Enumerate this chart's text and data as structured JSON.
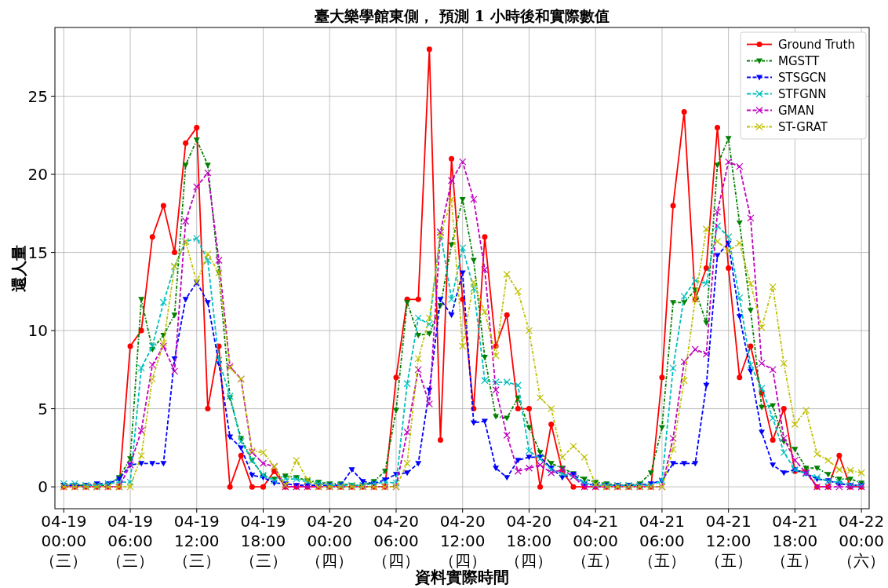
{
  "chart_data": {
    "type": "line",
    "title": "臺大樂學館東側， 預測 1 小時後和實際數值",
    "xlabel": "資料實際時間",
    "ylabel": "還人量",
    "categories": [
      "04-19\n00:00\n（三）",
      null,
      null,
      null,
      null,
      null,
      "04-19\n06:00\n（三）",
      null,
      null,
      null,
      null,
      null,
      "04-19\n12:00\n（三）",
      null,
      null,
      null,
      null,
      null,
      "04-19\n18:00\n（三）",
      null,
      null,
      null,
      null,
      null,
      "04-20\n00:00\n（四）",
      null,
      null,
      null,
      null,
      null,
      "04-20\n06:00\n（四）",
      null,
      null,
      null,
      null,
      null,
      "04-20\n12:00\n（四）",
      null,
      null,
      null,
      null,
      null,
      "04-20\n18:00\n（四）",
      null,
      null,
      null,
      null,
      null,
      "04-21\n00:00\n（五）",
      null,
      null,
      null,
      null,
      null,
      "04-21\n06:00\n（五）",
      null,
      null,
      null,
      null,
      null,
      "04-21\n12:00\n（五）",
      null,
      null,
      null,
      null,
      null,
      "04-21\n18:00\n（五）",
      null,
      null,
      null,
      null,
      null,
      "04-22\n00:00\n（六）"
    ],
    "ylim": [
      -1.4,
      29.4
    ],
    "yticks": [
      0,
      5,
      10,
      15,
      20,
      25
    ],
    "grid": true,
    "legend": "top right",
    "series": [
      {
        "name": "Ground Truth",
        "color": "#ff0000",
        "marker": "circle",
        "line_style": "solid",
        "values": [
          0,
          0,
          0,
          0,
          0,
          0,
          9,
          10,
          16,
          18,
          15,
          22,
          23,
          5,
          9,
          0,
          2,
          0,
          0,
          1,
          0,
          0,
          0,
          0,
          0,
          0,
          0,
          0,
          0,
          0,
          7,
          12,
          12,
          28,
          3,
          21,
          12,
          5,
          16,
          9,
          11,
          5,
          5,
          0,
          4,
          1,
          0,
          0,
          0,
          0,
          0,
          0,
          0,
          0,
          7,
          18,
          24,
          12,
          14,
          23,
          14,
          7,
          9,
          6,
          3,
          5,
          1,
          1,
          0,
          0,
          2,
          0,
          0
        ]
      },
      {
        "name": "MGSTT",
        "color": "#008000",
        "marker": "triangle",
        "line_style": "dotted",
        "values": [
          0.1,
          0.1,
          0.1,
          0.1,
          0.1,
          0.6,
          1.8,
          12,
          8.8,
          9.7,
          11,
          20.6,
          22.2,
          20.6,
          13.7,
          5.7,
          3.1,
          1.7,
          0.7,
          0.5,
          0.7,
          0.6,
          0.4,
          0.3,
          0.2,
          0.2,
          0.1,
          0.1,
          0.35,
          1.0,
          4.9,
          11.8,
          9.7,
          9.8,
          11.6,
          15.5,
          18.4,
          14.5,
          8.3,
          4.5,
          4.4,
          5.7,
          3.8,
          2.2,
          1.5,
          1.2,
          0.85,
          0.5,
          0.3,
          0.2,
          0.1,
          0.1,
          0.2,
          0.9,
          3.8,
          11.8,
          11.8,
          12.6,
          10.5,
          20.6,
          22.3,
          16.9,
          11.3,
          5.1,
          5.2,
          2.9,
          2.4,
          1.2,
          1.2,
          0.8,
          0.5,
          0.5,
          0.25
        ]
      },
      {
        "name": "STSGCN",
        "color": "#0000ff",
        "marker": "triangle",
        "line_style": "dashed",
        "values": [
          0.1,
          0.1,
          0.1,
          0.2,
          0.2,
          0.5,
          1.4,
          1.5,
          1.5,
          1.5,
          8.2,
          12,
          13.1,
          11.8,
          7.9,
          3.2,
          2.5,
          0.75,
          0.6,
          0.25,
          0.2,
          0.1,
          0.1,
          0.1,
          0.1,
          0.1,
          1.1,
          0.35,
          0.2,
          0.45,
          0.8,
          0.9,
          1.5,
          6.2,
          12,
          11,
          13.7,
          4.1,
          4.2,
          1.2,
          0.6,
          1.7,
          1.9,
          1.9,
          1.2,
          0.6,
          0.8,
          0.2,
          0.1,
          0.1,
          0.1,
          0.1,
          0.1,
          0.2,
          0.4,
          1.5,
          1.5,
          1.5,
          6.5,
          14.8,
          15.6,
          10.9,
          7.4,
          3.5,
          1.4,
          0.9,
          1.1,
          0.85,
          0.5,
          0.4,
          0.2,
          0.1,
          0.1
        ]
      },
      {
        "name": "STFGNN",
        "color": "#00bfbf",
        "marker": "cross",
        "line_style": "dashed",
        "values": [
          0.2,
          0.2,
          0.1,
          0.1,
          0.2,
          0.3,
          0.3,
          7.6,
          9,
          11.8,
          14.1,
          15.7,
          15.9,
          14.5,
          8.1,
          5.8,
          2.9,
          1.7,
          0.75,
          0.4,
          0.5,
          0.5,
          0.3,
          0.2,
          0.1,
          0.1,
          0.1,
          0.1,
          0.2,
          0.3,
          0.25,
          6.6,
          10.8,
          10.4,
          16.3,
          12,
          15.3,
          12.7,
          6.8,
          6.7,
          6.7,
          6.5,
          2.3,
          1.8,
          1.1,
          0.85,
          0.65,
          0.25,
          0.1,
          0.1,
          0.1,
          0.1,
          0.1,
          0.1,
          0.4,
          7.6,
          12.2,
          13.2,
          13,
          16.7,
          16,
          12.1,
          7.8,
          6.3,
          4.4,
          2.2,
          1.1,
          0.85,
          0.6,
          0.35,
          0.3,
          0.1,
          0.1
        ]
      },
      {
        "name": "GMAN",
        "color": "#bf00bf",
        "marker": "cross",
        "line_style": "dashed",
        "values": [
          0,
          0,
          0,
          0,
          0,
          0,
          1.4,
          3.6,
          7.8,
          9,
          7.4,
          17,
          19.2,
          20.1,
          14.5,
          7.7,
          6.9,
          2.2,
          1.5,
          1.3,
          0,
          0,
          0,
          0,
          0,
          0,
          0,
          0,
          0,
          0,
          0,
          3.5,
          7.5,
          5.3,
          16.3,
          19.6,
          20.8,
          18.4,
          13.9,
          6.2,
          3.3,
          1.0,
          1.2,
          1.4,
          0.9,
          1.1,
          0.65,
          0,
          0,
          0,
          0,
          0,
          0,
          0,
          0,
          3.1,
          8,
          8.8,
          8.5,
          17.6,
          20.8,
          20.5,
          17.2,
          7.9,
          7.5,
          3.1,
          1.7,
          0.9,
          0,
          0,
          0,
          0,
          0
        ]
      },
      {
        "name": "ST-GRAT",
        "color": "#bfbf00",
        "marker": "cross",
        "line_style": "dotted",
        "values": [
          0,
          0,
          0,
          0,
          0,
          0,
          0,
          2,
          6.9,
          9.2,
          14.1,
          15.7,
          13.1,
          14.9,
          13.7,
          7.6,
          6.9,
          2.3,
          2.2,
          1.3,
          0.1,
          1.7,
          0.45,
          0,
          0,
          0,
          0,
          0,
          0,
          0,
          0,
          1.5,
          8.2,
          10.8,
          16.1,
          18.4,
          9,
          13.1,
          11.2,
          8.4,
          13.6,
          12.5,
          10,
          5.7,
          5,
          1.9,
          2.6,
          1.9,
          0.15,
          0,
          0,
          0,
          0,
          0,
          0,
          2.4,
          6.8,
          12,
          16.5,
          15.7,
          15.1,
          15.6,
          13,
          10.2,
          12.8,
          7.9,
          4,
          4.9,
          2.1,
          1.7,
          1.1,
          1.05,
          0.9
        ]
      }
    ]
  }
}
